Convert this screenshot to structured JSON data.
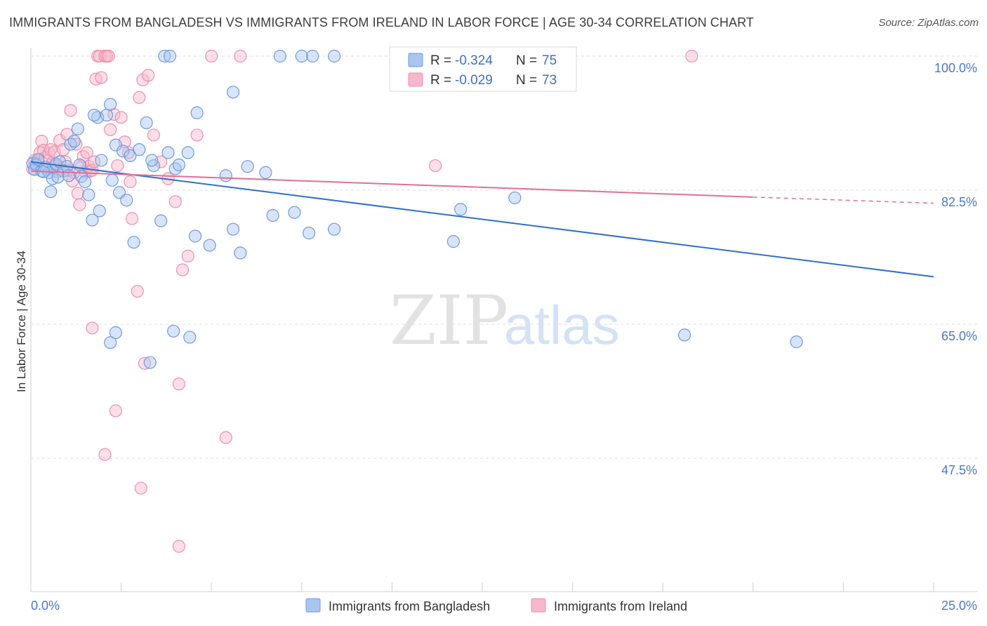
{
  "header": {
    "title": "IMMIGRANTS FROM BANGLADESH VS IMMIGRANTS FROM IRELAND IN LABOR FORCE | AGE 30-34 CORRELATION CHART",
    "source": "Source: ZipAtlas.com"
  },
  "watermark": {
    "zip": "ZIP",
    "atlas": "atlas"
  },
  "colors": {
    "blue_fill": "#a9c6f0",
    "blue_stroke": "#6f9ae0",
    "blue_line": "#2f6fd0",
    "pink_fill": "#f6b8cb",
    "pink_stroke": "#ec8fac",
    "pink_line": "#e06f97",
    "grid": "#dcdcdc",
    "axis_text": "#4a78c8"
  },
  "legend": {
    "r_label": "R =",
    "n_label": "N =",
    "rows": [
      {
        "r": "-0.324",
        "n": "75"
      },
      {
        "r": "-0.029",
        "n": "73"
      }
    ]
  },
  "chart_data": {
    "type": "scatter",
    "title": "IMMIGRANTS FROM BANGLADESH VS IMMIGRANTS FROM IRELAND IN LABOR FORCE | AGE 30-34 CORRELATION CHART",
    "xlabel": "",
    "ylabel": "In Labor Force | Age 30-34",
    "xlim": [
      0,
      25
    ],
    "ylim": [
      30,
      101.5
    ],
    "x_tick_labels": [
      "0.0%",
      "25.0%"
    ],
    "y_ticks": [
      47.5,
      65.0,
      82.5,
      100.0
    ],
    "y_tick_labels": [
      "47.5%",
      "65.0%",
      "82.5%",
      "100.0%"
    ],
    "grid": true,
    "legend_position": "top-center",
    "series": [
      {
        "name": "Immigrants from Bangladesh",
        "r": -0.324,
        "n": 75,
        "trend": {
          "x0": 0,
          "y0": 86.2,
          "x1": 25,
          "y1": 71.2
        },
        "points": [
          [
            0.05,
            86.0
          ],
          [
            0.1,
            85.2
          ],
          [
            0.15,
            85.8
          ],
          [
            0.2,
            86.5
          ],
          [
            0.3,
            85.0
          ],
          [
            0.4,
            85.5
          ],
          [
            0.5,
            84.8
          ],
          [
            0.6,
            84.0
          ],
          [
            0.7,
            85.9
          ],
          [
            0.8,
            86.2
          ],
          [
            0.9,
            85.0
          ],
          [
            1.0,
            85.6
          ],
          [
            1.1,
            88.5
          ],
          [
            1.2,
            88.9
          ],
          [
            1.3,
            90.5
          ],
          [
            1.4,
            84.3
          ],
          [
            1.5,
            83.6
          ],
          [
            1.6,
            81.9
          ],
          [
            1.7,
            78.6
          ],
          [
            1.85,
            92.0
          ],
          [
            1.95,
            86.4
          ],
          [
            2.1,
            92.3
          ],
          [
            2.2,
            93.7
          ],
          [
            2.25,
            83.8
          ],
          [
            2.35,
            88.4
          ],
          [
            2.45,
            82.2
          ],
          [
            2.55,
            87.6
          ],
          [
            2.65,
            81.2
          ],
          [
            2.75,
            87.0
          ],
          [
            2.85,
            75.7
          ],
          [
            3.0,
            87.8
          ],
          [
            3.2,
            91.3
          ],
          [
            3.4,
            85.7
          ],
          [
            3.6,
            78.5
          ],
          [
            3.8,
            87.4
          ],
          [
            4.0,
            85.3
          ],
          [
            4.1,
            85.8
          ],
          [
            4.35,
            87.4
          ],
          [
            4.55,
            76.5
          ],
          [
            4.95,
            75.3
          ],
          [
            5.4,
            84.4
          ],
          [
            5.6,
            77.4
          ],
          [
            5.8,
            74.3
          ],
          [
            6.0,
            85.6
          ],
          [
            6.5,
            84.8
          ],
          [
            6.7,
            79.2
          ],
          [
            7.3,
            79.6
          ],
          [
            7.7,
            76.9
          ],
          [
            8.4,
            77.4
          ],
          [
            11.7,
            75.8
          ],
          [
            11.9,
            80.0
          ],
          [
            13.4,
            81.5
          ],
          [
            2.35,
            63.9
          ],
          [
            3.95,
            64.1
          ],
          [
            4.4,
            63.3
          ],
          [
            18.1,
            63.6
          ],
          [
            21.2,
            62.7
          ],
          [
            2.2,
            62.6
          ],
          [
            3.3,
            60.0
          ],
          [
            1.9,
            79.8
          ],
          [
            0.75,
            84.2
          ],
          [
            0.55,
            82.3
          ],
          [
            0.35,
            84.9
          ],
          [
            1.35,
            85.8
          ],
          [
            1.05,
            84.4
          ],
          [
            6.9,
            100.0
          ],
          [
            7.5,
            100.0
          ],
          [
            7.8,
            100.0
          ],
          [
            8.4,
            100.0
          ],
          [
            5.6,
            95.3
          ],
          [
            3.7,
            100.0
          ],
          [
            3.85,
            100.0
          ],
          [
            4.6,
            92.6
          ],
          [
            1.75,
            92.3
          ],
          [
            3.35,
            86.4
          ]
        ]
      },
      {
        "name": "Immigrants from Ireland",
        "r": -0.029,
        "n": 73,
        "trend": {
          "x0": 0,
          "y0": 85.0,
          "x1": 20,
          "y1": 81.6
        },
        "trend_dashed": {
          "x0": 20,
          "y0": 81.6,
          "x1": 25,
          "y1": 80.8
        },
        "points": [
          [
            0.05,
            85.3
          ],
          [
            0.1,
            86.4
          ],
          [
            0.15,
            86.0
          ],
          [
            0.2,
            86.2
          ],
          [
            0.25,
            87.4
          ],
          [
            0.3,
            88.9
          ],
          [
            0.35,
            87.7
          ],
          [
            0.4,
            86.8
          ],
          [
            0.45,
            85.2
          ],
          [
            0.5,
            87.3
          ],
          [
            0.55,
            87.8
          ],
          [
            0.6,
            86.1
          ],
          [
            0.65,
            87.5
          ],
          [
            0.7,
            85.7
          ],
          [
            0.75,
            84.9
          ],
          [
            0.8,
            89.0
          ],
          [
            0.85,
            85.2
          ],
          [
            0.9,
            87.8
          ],
          [
            0.95,
            86.2
          ],
          [
            1.0,
            89.8
          ],
          [
            1.05,
            85.1
          ],
          [
            1.1,
            92.9
          ],
          [
            1.15,
            83.7
          ],
          [
            1.2,
            84.8
          ],
          [
            1.25,
            88.5
          ],
          [
            1.3,
            82.1
          ],
          [
            1.35,
            80.6
          ],
          [
            1.4,
            85.6
          ],
          [
            1.45,
            86.9
          ],
          [
            1.5,
            84.9
          ],
          [
            1.55,
            87.4
          ],
          [
            1.6,
            85.6
          ],
          [
            1.65,
            85.0
          ],
          [
            1.7,
            85.1
          ],
          [
            1.75,
            86.2
          ],
          [
            1.8,
            97.0
          ],
          [
            1.85,
            100.0
          ],
          [
            1.9,
            100.0
          ],
          [
            1.95,
            97.2
          ],
          [
            2.05,
            100.0
          ],
          [
            2.1,
            100.0
          ],
          [
            2.15,
            100.0
          ],
          [
            2.2,
            90.4
          ],
          [
            2.3,
            92.4
          ],
          [
            2.4,
            85.7
          ],
          [
            2.5,
            92.0
          ],
          [
            2.6,
            88.8
          ],
          [
            2.7,
            87.4
          ],
          [
            2.75,
            83.6
          ],
          [
            2.8,
            78.8
          ],
          [
            3.0,
            94.6
          ],
          [
            3.1,
            96.9
          ],
          [
            3.25,
            97.5
          ],
          [
            3.4,
            89.7
          ],
          [
            3.6,
            86.2
          ],
          [
            3.8,
            84.0
          ],
          [
            4.0,
            81.0
          ],
          [
            4.2,
            72.1
          ],
          [
            4.35,
            73.9
          ],
          [
            4.6,
            89.7
          ],
          [
            5.0,
            100.0
          ],
          [
            5.8,
            100.0
          ],
          [
            11.2,
            85.7
          ],
          [
            18.3,
            100.0
          ],
          [
            1.7,
            64.5
          ],
          [
            2.95,
            69.3
          ],
          [
            3.15,
            59.9
          ],
          [
            4.1,
            57.2
          ],
          [
            2.35,
            53.7
          ],
          [
            5.4,
            50.2
          ],
          [
            2.05,
            48.0
          ],
          [
            3.05,
            43.6
          ],
          [
            4.1,
            36.0
          ]
        ]
      }
    ]
  }
}
